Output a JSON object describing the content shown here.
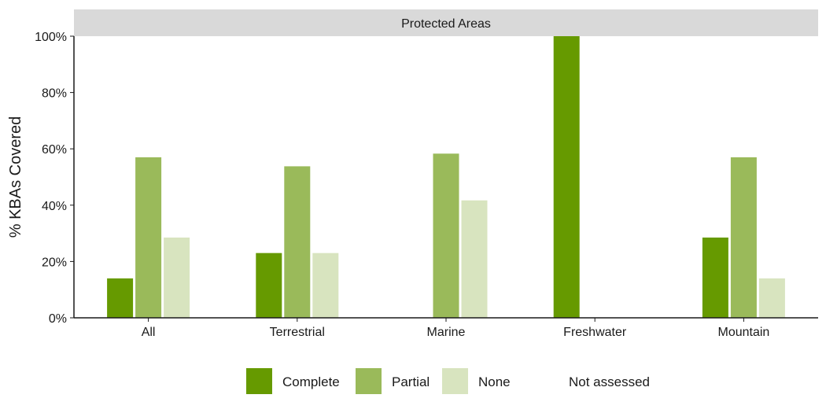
{
  "chart_data": {
    "type": "bar",
    "facet_title": "Protected Areas",
    "ylabel": "% KBAs Covered",
    "xlabel": "",
    "ylim": [
      0,
      100
    ],
    "yticks": [
      "0%",
      "20%",
      "40%",
      "60%",
      "80%",
      "100%"
    ],
    "ytick_values": [
      0,
      20,
      40,
      60,
      80,
      100
    ],
    "categories": [
      "All",
      "Terrestrial",
      "Marine",
      "Freshwater",
      "Mountain"
    ],
    "series": [
      {
        "name": "Complete",
        "color": "#669a00",
        "values": [
          14,
          23,
          0,
          100,
          28.5
        ]
      },
      {
        "name": "Partial",
        "color": "#9aba5a",
        "values": [
          57,
          53.8,
          58.3,
          0,
          57
        ]
      },
      {
        "name": "None",
        "color": "#d8e4bf",
        "values": [
          28.5,
          23,
          41.7,
          0,
          14
        ]
      }
    ],
    "legend": {
      "placement": "bottom",
      "items": [
        {
          "label": "Complete",
          "color": "#669a00"
        },
        {
          "label": "Partial",
          "color": "#9aba5a"
        },
        {
          "label": "None",
          "color": "#d8e4bf"
        },
        {
          "label": "Not assessed",
          "color": ""
        }
      ]
    },
    "grid": false
  }
}
